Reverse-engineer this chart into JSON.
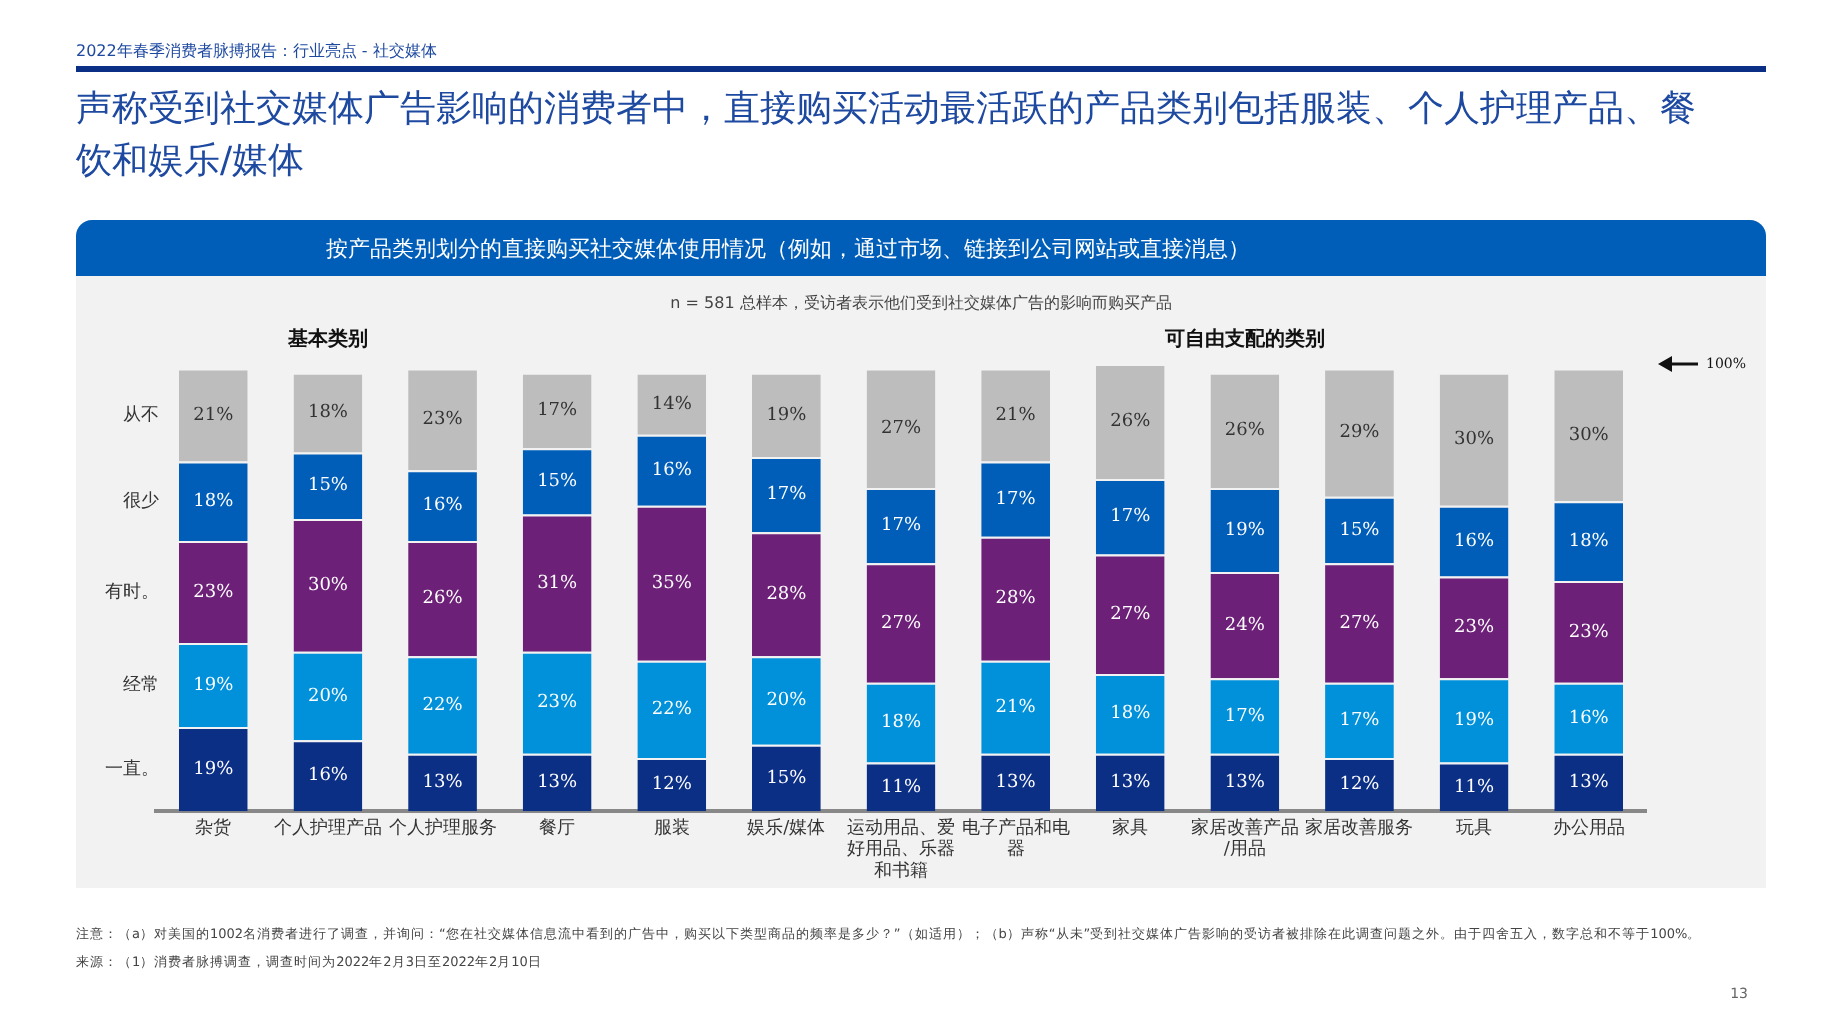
{
  "chart_data": {
    "type": "bar",
    "stacked": true,
    "legend": false,
    "grid": false,
    "title": "声称受到社交媒体广告影响的消费者中，直接购买活动最活跃的产品类别包括服装、个人护理产品、餐饮和娱乐/媒体",
    "subtitle": "按产品类别划分的直接购买社交媒体使用情况（例如，通过市场、链接到公司网站或直接消息）",
    "categories": [
      "杂货",
      "个人护理产品",
      "个人护理服务",
      "餐厅",
      "服装",
      "娱乐/媒体",
      "运动用品、爱好用品、乐器和书籍",
      "电子产品和电器",
      "家具",
      "家居改善产品/用品",
      "家居改善服务",
      "玩具",
      "办公用品"
    ],
    "series": [
      {
        "name": "一直。",
        "color": "#0c2f86",
        "values": [
          19,
          16,
          13,
          13,
          12,
          15,
          11,
          13,
          13,
          13,
          12,
          11,
          13
        ],
        "value_labels": [
          "19%",
          "16%",
          "13%",
          "13%",
          "12%",
          "15%",
          "11%",
          "13%",
          "13%",
          "13%",
          "12%",
          "11%",
          "13%"
        ]
      },
      {
        "name": "经常",
        "color": "#0091da",
        "values": [
          19,
          20,
          22,
          23,
          22,
          20,
          18,
          21,
          18,
          17,
          17,
          19,
          16
        ],
        "value_labels": [
          "19%",
          "20%",
          "22%",
          "23%",
          "22%",
          "20%",
          "18%",
          "21%",
          "18%",
          "17%",
          "17%",
          "19%",
          "16%"
        ]
      },
      {
        "name": "有时。",
        "color": "#6d2077",
        "values": [
          23,
          30,
          26,
          31,
          35,
          28,
          27,
          28,
          27,
          24,
          27,
          23,
          23
        ],
        "value_labels": [
          "23%",
          "30%",
          "26%",
          "31%",
          "35%",
          "28%",
          "27%",
          "28%",
          "27%",
          "24%",
          "27%",
          "23%",
          "23%"
        ]
      },
      {
        "name": "很少",
        "color": "#005eb8",
        "values": [
          18,
          15,
          16,
          15,
          16,
          17,
          17,
          17,
          17,
          19,
          15,
          16,
          18
        ],
        "value_labels": [
          "18%",
          "15%",
          "16%",
          "15%",
          "16%",
          "17%",
          "17%",
          "17%",
          "17%",
          "19%",
          "15%",
          "16%",
          "18%"
        ]
      },
      {
        "name": "从不",
        "color": "#bdbdbd",
        "values": [
          21,
          18,
          23,
          17,
          14,
          19,
          27,
          21,
          26,
          26,
          29,
          30,
          30
        ],
        "value_labels": [
          "21%",
          "18%",
          "23%",
          "17%",
          "14%",
          "19%",
          "27%",
          "21%",
          "26%",
          "26%",
          "29%",
          "30%",
          "30%"
        ]
      }
    ],
    "annotations": [
      "2022年春季消费者脉搏报告：行业亮点 - 社交媒体",
      "n = 581 总样本，受访者表示他们受到社交媒体广告的影响而购买产品",
      "基本类别",
      "可自由支配的类别",
      "100%",
      "注意：（a）对美国的1002名消费者进行了调查，并询问：“您在社交媒体信息流中看到的广告中，购买以下类型商品的频率是多少？”（如适用）；（b）声称“从未”受到社交媒体广告影响的受访者被排除在此调查问题之外。由于四舍五入，数字总和不等于100%。",
      "来源：（1）消费者脉搏调查，调查时间为2022年2月3日至2022年2月10日",
      "13"
    ]
  }
}
